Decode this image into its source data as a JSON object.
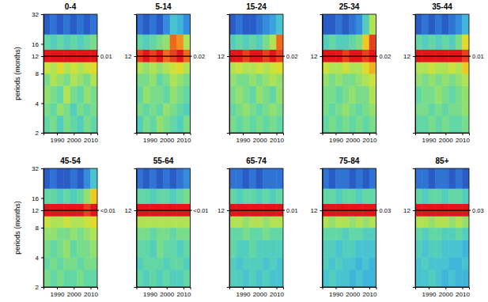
{
  "chart_data": [
    {
      "type": "heatmap",
      "title": "0-4",
      "ylabel": "periods (months)",
      "log": "y",
      "xlim": [
        1982,
        2014
      ],
      "ylim": [
        2,
        32
      ],
      "xticks": [
        1990,
        2000,
        2010
      ],
      "yticks": [
        2,
        4,
        8,
        12,
        16,
        32
      ],
      "x_edges": [
        1982,
        1986,
        1990,
        1994,
        1998,
        2002,
        2006,
        2010,
        2014
      ],
      "y_edges": [
        2,
        3,
        4,
        6,
        8,
        10.5,
        14,
        20,
        32
      ],
      "zlim": [
        0,
        1
      ],
      "cells": [
        [
          0.45,
          0.5,
          0.4,
          0.5,
          0.45,
          0.4,
          0.5,
          0.45
        ],
        [
          0.5,
          0.45,
          0.55,
          0.5,
          0.4,
          0.5,
          0.45,
          0.5
        ],
        [
          0.55,
          0.5,
          0.45,
          0.6,
          0.5,
          0.45,
          0.55,
          0.5
        ],
        [
          0.5,
          0.6,
          0.55,
          0.5,
          0.6,
          0.55,
          0.5,
          0.6
        ],
        [
          0.65,
          0.6,
          0.7,
          0.6,
          0.65,
          0.6,
          0.65,
          0.7
        ],
        [
          1,
          1,
          1,
          1,
          1,
          1,
          1,
          1
        ],
        [
          0.45,
          0.4,
          0.45,
          0.4,
          0.45,
          0.4,
          0.45,
          0.5
        ],
        [
          0.1,
          0.15,
          0.1,
          0.15,
          0.1,
          0.15,
          0.1,
          0.15
        ]
      ],
      "hline": 12,
      "annotation": "0.01"
    },
    {
      "type": "heatmap",
      "title": "5-14",
      "log": "y",
      "xlim": [
        1982,
        2014
      ],
      "ylim": [
        2,
        32
      ],
      "xticks": [
        1990,
        2000,
        2010
      ],
      "yticks": [
        12
      ],
      "x_edges": [
        1982,
        1986,
        1990,
        1994,
        1998,
        2002,
        2006,
        2010,
        2014
      ],
      "y_edges": [
        2,
        3,
        4,
        6,
        8,
        10.5,
        14,
        20,
        32
      ],
      "zlim": [
        0,
        1
      ],
      "cells": [
        [
          0.4,
          0.5,
          0.45,
          0.55,
          0.5,
          0.45,
          0.4,
          0.5
        ],
        [
          0.5,
          0.45,
          0.5,
          0.45,
          0.55,
          0.5,
          0.45,
          0.4
        ],
        [
          0.45,
          0.55,
          0.5,
          0.5,
          0.45,
          0.55,
          0.5,
          0.45
        ],
        [
          0.5,
          0.5,
          0.55,
          0.45,
          0.5,
          0.6,
          0.55,
          0.5
        ],
        [
          0.6,
          0.55,
          0.6,
          0.55,
          0.6,
          0.65,
          0.7,
          0.6
        ],
        [
          0.95,
          1,
          0.95,
          1,
          0.9,
          0.95,
          1,
          0.9
        ],
        [
          0.45,
          0.4,
          0.45,
          0.5,
          0.55,
          0.9,
          0.85,
          0.6
        ],
        [
          0.15,
          0.1,
          0.15,
          0.1,
          0.2,
          0.35,
          0.3,
          0.2
        ]
      ],
      "hline": 12,
      "annotation": "0.02"
    },
    {
      "type": "heatmap",
      "title": "15-24",
      "log": "y",
      "xlim": [
        1982,
        2014
      ],
      "ylim": [
        2,
        32
      ],
      "xticks": [
        1990,
        2000,
        2010
      ],
      "yticks": [
        12
      ],
      "x_edges": [
        1982,
        1986,
        1990,
        1994,
        1998,
        2002,
        2006,
        2010,
        2014
      ],
      "y_edges": [
        2,
        3,
        4,
        6,
        8,
        10.5,
        14,
        20,
        32
      ],
      "zlim": [
        0,
        1
      ],
      "cells": [
        [
          0.5,
          0.45,
          0.5,
          0.45,
          0.5,
          0.45,
          0.5,
          0.45
        ],
        [
          0.45,
          0.5,
          0.55,
          0.5,
          0.45,
          0.5,
          0.55,
          0.5
        ],
        [
          0.5,
          0.55,
          0.5,
          0.45,
          0.55,
          0.5,
          0.45,
          0.55
        ],
        [
          0.55,
          0.5,
          0.5,
          0.55,
          0.5,
          0.55,
          0.6,
          0.55
        ],
        [
          0.6,
          0.65,
          0.6,
          0.6,
          0.65,
          0.6,
          0.65,
          0.7
        ],
        [
          1,
          1,
          0.95,
          1,
          1,
          0.95,
          1,
          0.95
        ],
        [
          0.4,
          0.45,
          0.4,
          0.45,
          0.4,
          0.5,
          0.6,
          0.9
        ],
        [
          0.1,
          0.15,
          0.1,
          0.1,
          0.15,
          0.2,
          0.25,
          0.35
        ]
      ],
      "hline": 12,
      "annotation": "0.02"
    },
    {
      "type": "heatmap",
      "title": "25-34",
      "log": "y",
      "xlim": [
        1982,
        2014
      ],
      "ylim": [
        2,
        32
      ],
      "xticks": [
        1990,
        2000,
        2010
      ],
      "yticks": [
        12
      ],
      "x_edges": [
        1982,
        1986,
        1990,
        1994,
        1998,
        2002,
        2006,
        2010,
        2014
      ],
      "y_edges": [
        2,
        3,
        4,
        6,
        8,
        10.5,
        14,
        20,
        32
      ],
      "zlim": [
        0,
        1
      ],
      "cells": [
        [
          0.45,
          0.5,
          0.45,
          0.5,
          0.45,
          0.5,
          0.45,
          0.5
        ],
        [
          0.5,
          0.45,
          0.5,
          0.55,
          0.5,
          0.45,
          0.5,
          0.55
        ],
        [
          0.5,
          0.5,
          0.45,
          0.5,
          0.55,
          0.5,
          0.5,
          0.6
        ],
        [
          0.55,
          0.5,
          0.55,
          0.5,
          0.5,
          0.55,
          0.6,
          0.65
        ],
        [
          0.65,
          0.6,
          0.6,
          0.65,
          0.6,
          0.6,
          0.7,
          0.8
        ],
        [
          1,
          1,
          1,
          0.95,
          1,
          1,
          0.95,
          1
        ],
        [
          0.4,
          0.45,
          0.4,
          0.4,
          0.45,
          0.5,
          0.75,
          0.95
        ],
        [
          0.1,
          0.1,
          0.15,
          0.1,
          0.15,
          0.2,
          0.4,
          0.6
        ]
      ],
      "hline": 12,
      "annotation": "0.02"
    },
    {
      "type": "heatmap",
      "title": "35-44",
      "log": "y",
      "xlim": [
        1982,
        2014
      ],
      "ylim": [
        2,
        32
      ],
      "xticks": [
        1990,
        2000,
        2010
      ],
      "yticks": [
        12
      ],
      "x_edges": [
        1982,
        1986,
        1990,
        1994,
        1998,
        2002,
        2006,
        2010,
        2014
      ],
      "y_edges": [
        2,
        3,
        4,
        6,
        8,
        10.5,
        14,
        20,
        32
      ],
      "zlim": [
        0,
        1
      ],
      "cells": [
        [
          0.45,
          0.45,
          0.5,
          0.45,
          0.5,
          0.45,
          0.45,
          0.5
        ],
        [
          0.5,
          0.5,
          0.45,
          0.5,
          0.45,
          0.5,
          0.5,
          0.55
        ],
        [
          0.45,
          0.5,
          0.5,
          0.55,
          0.5,
          0.45,
          0.5,
          0.55
        ],
        [
          0.55,
          0.5,
          0.55,
          0.5,
          0.55,
          0.5,
          0.55,
          0.6
        ],
        [
          0.6,
          0.6,
          0.65,
          0.6,
          0.6,
          0.65,
          0.6,
          0.75
        ],
        [
          1,
          1,
          1,
          1,
          1,
          1,
          1,
          0.95
        ],
        [
          0.45,
          0.4,
          0.45,
          0.4,
          0.45,
          0.4,
          0.5,
          0.7
        ],
        [
          0.1,
          0.15,
          0.1,
          0.15,
          0.1,
          0.15,
          0.2,
          0.3
        ]
      ],
      "hline": 12,
      "annotation": "0.01"
    },
    {
      "type": "heatmap",
      "title": "45-54",
      "ylabel": "periods (months)",
      "log": "y",
      "xlim": [
        1982,
        2014
      ],
      "ylim": [
        2,
        32
      ],
      "xticks": [
        1990,
        2000,
        2010
      ],
      "yticks": [
        2,
        4,
        8,
        12,
        16,
        32
      ],
      "x_edges": [
        1982,
        1986,
        1990,
        1994,
        1998,
        2002,
        2006,
        2010,
        2014
      ],
      "y_edges": [
        2,
        3,
        4,
        6,
        8,
        10.5,
        14,
        20,
        32
      ],
      "zlim": [
        0,
        1
      ],
      "cells": [
        [
          0.5,
          0.45,
          0.5,
          0.45,
          0.45,
          0.5,
          0.45,
          0.45
        ],
        [
          0.45,
          0.5,
          0.45,
          0.5,
          0.5,
          0.45,
          0.5,
          0.5
        ],
        [
          0.5,
          0.45,
          0.5,
          0.55,
          0.45,
          0.5,
          0.5,
          0.55
        ],
        [
          0.55,
          0.55,
          0.5,
          0.5,
          0.55,
          0.5,
          0.55,
          0.6
        ],
        [
          0.65,
          0.6,
          0.6,
          0.65,
          0.6,
          0.6,
          0.65,
          0.7
        ],
        [
          1,
          1,
          1,
          1,
          1,
          1,
          0.95,
          1
        ],
        [
          0.45,
          0.45,
          0.4,
          0.45,
          0.4,
          0.45,
          0.55,
          0.75
        ],
        [
          0.1,
          0.15,
          0.1,
          0.1,
          0.15,
          0.1,
          0.2,
          0.35
        ]
      ],
      "hline": 12,
      "annotation": "<0.01"
    },
    {
      "type": "heatmap",
      "title": "55-64",
      "log": "y",
      "xlim": [
        1982,
        2014
      ],
      "ylim": [
        2,
        32
      ],
      "xticks": [
        1990,
        2000,
        2010
      ],
      "yticks": [
        12
      ],
      "x_edges": [
        1982,
        1986,
        1990,
        1994,
        1998,
        2002,
        2006,
        2010,
        2014
      ],
      "y_edges": [
        2,
        3,
        4,
        6,
        8,
        10.5,
        14,
        20,
        32
      ],
      "zlim": [
        0,
        1
      ],
      "cells": [
        [
          0.45,
          0.4,
          0.45,
          0.4,
          0.45,
          0.4,
          0.4,
          0.45
        ],
        [
          0.4,
          0.45,
          0.45,
          0.45,
          0.4,
          0.45,
          0.45,
          0.4
        ],
        [
          0.45,
          0.45,
          0.4,
          0.5,
          0.45,
          0.45,
          0.4,
          0.45
        ],
        [
          0.5,
          0.5,
          0.45,
          0.5,
          0.5,
          0.45,
          0.5,
          0.5
        ],
        [
          0.6,
          0.6,
          0.6,
          0.6,
          0.6,
          0.6,
          0.6,
          0.6
        ],
        [
          1,
          1,
          1,
          1,
          1,
          1,
          1,
          1
        ],
        [
          0.45,
          0.45,
          0.4,
          0.45,
          0.45,
          0.4,
          0.45,
          0.5
        ],
        [
          0.15,
          0.1,
          0.15,
          0.1,
          0.15,
          0.1,
          0.15,
          0.2
        ]
      ],
      "hline": 12,
      "annotation": "<0.01"
    },
    {
      "type": "heatmap",
      "title": "65-74",
      "log": "y",
      "xlim": [
        1982,
        2014
      ],
      "ylim": [
        2,
        32
      ],
      "xticks": [
        1990,
        2000,
        2010
      ],
      "yticks": [
        12
      ],
      "x_edges": [
        1982,
        1986,
        1990,
        1994,
        1998,
        2002,
        2006,
        2010,
        2014
      ],
      "y_edges": [
        2,
        3,
        4,
        6,
        8,
        10.5,
        14,
        20,
        32
      ],
      "zlim": [
        0,
        1
      ],
      "cells": [
        [
          0.4,
          0.4,
          0.35,
          0.4,
          0.35,
          0.4,
          0.35,
          0.35
        ],
        [
          0.4,
          0.35,
          0.4,
          0.4,
          0.4,
          0.35,
          0.4,
          0.35
        ],
        [
          0.45,
          0.4,
          0.4,
          0.45,
          0.4,
          0.4,
          0.4,
          0.4
        ],
        [
          0.45,
          0.45,
          0.5,
          0.45,
          0.45,
          0.5,
          0.45,
          0.45
        ],
        [
          0.6,
          0.6,
          0.55,
          0.6,
          0.6,
          0.55,
          0.6,
          0.6
        ],
        [
          1,
          1,
          1,
          1,
          1,
          1,
          1,
          1
        ],
        [
          0.45,
          0.4,
          0.45,
          0.45,
          0.4,
          0.45,
          0.4,
          0.45
        ],
        [
          0.15,
          0.15,
          0.1,
          0.15,
          0.1,
          0.15,
          0.15,
          0.15
        ]
      ],
      "hline": 12,
      "annotation": "0.01"
    },
    {
      "type": "heatmap",
      "title": "75-84",
      "log": "y",
      "xlim": [
        1982,
        2014
      ],
      "ylim": [
        2,
        32
      ],
      "xticks": [
        1990,
        2000,
        2010
      ],
      "yticks": [
        12
      ],
      "x_edges": [
        1982,
        1986,
        1990,
        1994,
        1998,
        2002,
        2006,
        2010,
        2014
      ],
      "y_edges": [
        2,
        3,
        4,
        6,
        8,
        10.5,
        14,
        20,
        32
      ],
      "zlim": [
        0,
        1
      ],
      "cells": [
        [
          0.35,
          0.4,
          0.35,
          0.35,
          0.3,
          0.35,
          0.3,
          0.3
        ],
        [
          0.4,
          0.35,
          0.4,
          0.35,
          0.35,
          0.3,
          0.35,
          0.3
        ],
        [
          0.4,
          0.4,
          0.35,
          0.4,
          0.4,
          0.35,
          0.35,
          0.35
        ],
        [
          0.45,
          0.45,
          0.45,
          0.4,
          0.45,
          0.45,
          0.4,
          0.4
        ],
        [
          0.6,
          0.55,
          0.6,
          0.6,
          0.55,
          0.6,
          0.55,
          0.6
        ],
        [
          1,
          1,
          1,
          1,
          1,
          1,
          1,
          1
        ],
        [
          0.45,
          0.45,
          0.4,
          0.45,
          0.45,
          0.4,
          0.45,
          0.45
        ],
        [
          0.15,
          0.1,
          0.15,
          0.15,
          0.1,
          0.15,
          0.1,
          0.15
        ]
      ],
      "hline": 12,
      "annotation": "0.03"
    },
    {
      "type": "heatmap",
      "title": "85+",
      "log": "y",
      "xlim": [
        1982,
        2014
      ],
      "ylim": [
        2,
        32
      ],
      "xticks": [
        1990,
        2000,
        2010
      ],
      "yticks": [
        12
      ],
      "x_edges": [
        1982,
        1986,
        1990,
        1994,
        1998,
        2002,
        2006,
        2010,
        2014
      ],
      "y_edges": [
        2,
        3,
        4,
        6,
        8,
        10.5,
        14,
        20,
        32
      ],
      "zlim": [
        0,
        1
      ],
      "cells": [
        [
          0.35,
          0.35,
          0.4,
          0.35,
          0.3,
          0.35,
          0.3,
          0.3
        ],
        [
          0.35,
          0.4,
          0.35,
          0.35,
          0.35,
          0.3,
          0.3,
          0.35
        ],
        [
          0.4,
          0.35,
          0.4,
          0.4,
          0.35,
          0.35,
          0.35,
          0.3
        ],
        [
          0.45,
          0.4,
          0.45,
          0.45,
          0.4,
          0.4,
          0.45,
          0.4
        ],
        [
          0.6,
          0.6,
          0.55,
          0.6,
          0.6,
          0.55,
          0.6,
          0.55
        ],
        [
          1,
          1,
          1,
          1,
          1,
          1,
          1,
          1
        ],
        [
          0.45,
          0.4,
          0.45,
          0.45,
          0.4,
          0.45,
          0.45,
          0.4
        ],
        [
          0.15,
          0.15,
          0.1,
          0.15,
          0.15,
          0.1,
          0.15,
          0.1
        ]
      ],
      "hline": 12,
      "annotation": "0.03"
    }
  ]
}
